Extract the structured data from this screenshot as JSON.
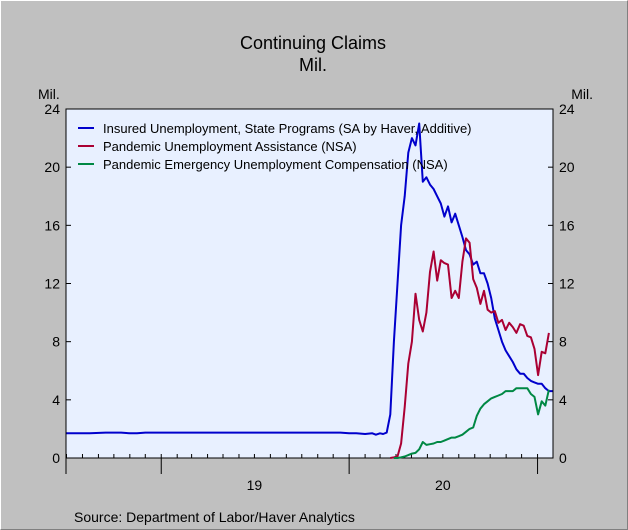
{
  "chart_data": {
    "type": "line",
    "title": "Continuing Claims",
    "subtitle": "Mil.",
    "ylabel_left": "Mil.",
    "ylabel_right": "Mil.",
    "source": "Source: Department of Labor/Haver Analytics",
    "ylim": [
      0,
      24
    ],
    "yticks": [
      "0",
      "4",
      "8",
      "12",
      "16",
      "20",
      "24"
    ],
    "xlim": [
      "2018-06-30",
      "2021-01-31"
    ],
    "x_year_labels": [
      {
        "label": "19",
        "mid": "2019-07-01"
      },
      {
        "label": "20",
        "mid": "2020-07-01"
      }
    ],
    "x_year_boundaries": [
      "2019-01-01",
      "2020-01-01",
      "2021-01-01"
    ],
    "grid": false,
    "legend_position": "top-left",
    "background": "#e8f0ff",
    "series": [
      {
        "name": "Insured Unemployment, State Programs (SA by Haver, Additive)",
        "color": "#0000cc",
        "points": [
          [
            "2018-07-01",
            1.7
          ],
          [
            "2018-08-15",
            1.7
          ],
          [
            "2018-09-15",
            1.75
          ],
          [
            "2018-10-15",
            1.75
          ],
          [
            "2018-11-01",
            1.7
          ],
          [
            "2018-11-15",
            1.7
          ],
          [
            "2018-12-01",
            1.75
          ],
          [
            "2019-02-01",
            1.75
          ],
          [
            "2019-05-01",
            1.75
          ],
          [
            "2019-08-01",
            1.75
          ],
          [
            "2019-11-01",
            1.75
          ],
          [
            "2019-12-15",
            1.75
          ],
          [
            "2020-01-01",
            1.7
          ],
          [
            "2020-01-15",
            1.7
          ],
          [
            "2020-02-01",
            1.65
          ],
          [
            "2020-02-15",
            1.7
          ],
          [
            "2020-02-22",
            1.6
          ],
          [
            "2020-03-01",
            1.7
          ],
          [
            "2020-03-07",
            1.65
          ],
          [
            "2020-03-14",
            1.75
          ],
          [
            "2020-03-21",
            3.0
          ],
          [
            "2020-03-28",
            8.0
          ],
          [
            "2020-04-04",
            12.0
          ],
          [
            "2020-04-11",
            16.0
          ],
          [
            "2020-04-18",
            18.0
          ],
          [
            "2020-04-25",
            21.0
          ],
          [
            "2020-05-02",
            22.0
          ],
          [
            "2020-05-09",
            21.5
          ],
          [
            "2020-05-16",
            23.0
          ],
          [
            "2020-05-23",
            19.0
          ],
          [
            "2020-05-30",
            19.3
          ],
          [
            "2020-06-06",
            18.8
          ],
          [
            "2020-06-13",
            18.5
          ],
          [
            "2020-06-20",
            18.0
          ],
          [
            "2020-06-27",
            17.5
          ],
          [
            "2020-07-04",
            16.6
          ],
          [
            "2020-07-11",
            17.3
          ],
          [
            "2020-07-18",
            16.2
          ],
          [
            "2020-07-25",
            16.8
          ],
          [
            "2020-08-01",
            16.0
          ],
          [
            "2020-08-08",
            15.2
          ],
          [
            "2020-08-15",
            14.3
          ],
          [
            "2020-08-22",
            14.0
          ],
          [
            "2020-08-29",
            13.3
          ],
          [
            "2020-09-05",
            13.5
          ],
          [
            "2020-09-12",
            12.7
          ],
          [
            "2020-09-19",
            12.7
          ],
          [
            "2020-09-26",
            12.0
          ],
          [
            "2020-10-03",
            11.0
          ],
          [
            "2020-10-10",
            9.6
          ],
          [
            "2020-10-17",
            8.8
          ],
          [
            "2020-10-24",
            8.0
          ],
          [
            "2020-10-31",
            7.4
          ],
          [
            "2020-11-07",
            7.0
          ],
          [
            "2020-11-14",
            6.6
          ],
          [
            "2020-11-21",
            6.1
          ],
          [
            "2020-11-28",
            5.8
          ],
          [
            "2020-12-05",
            5.8
          ],
          [
            "2020-12-12",
            5.5
          ],
          [
            "2020-12-19",
            5.3
          ],
          [
            "2020-12-26",
            5.2
          ],
          [
            "2021-01-02",
            5.1
          ],
          [
            "2021-01-09",
            5.1
          ],
          [
            "2021-01-16",
            4.8
          ],
          [
            "2021-01-23",
            4.6
          ],
          [
            "2021-01-30",
            4.6
          ]
        ]
      },
      {
        "name": "Pandemic Unemployment Assistance (NSA)",
        "color": "#aa0033",
        "points": [
          [
            "2020-03-21",
            0.0
          ],
          [
            "2020-03-28",
            0.05
          ],
          [
            "2020-04-04",
            0.1
          ],
          [
            "2020-04-11",
            1.0
          ],
          [
            "2020-04-18",
            3.5
          ],
          [
            "2020-04-25",
            6.5
          ],
          [
            "2020-05-02",
            8.0
          ],
          [
            "2020-05-09",
            11.3
          ],
          [
            "2020-05-16",
            9.5
          ],
          [
            "2020-05-23",
            8.7
          ],
          [
            "2020-05-30",
            10.0
          ],
          [
            "2020-06-06",
            12.8
          ],
          [
            "2020-06-13",
            14.2
          ],
          [
            "2020-06-20",
            12.2
          ],
          [
            "2020-06-27",
            13.6
          ],
          [
            "2020-07-04",
            13.4
          ],
          [
            "2020-07-11",
            13.3
          ],
          [
            "2020-07-18",
            11.0
          ],
          [
            "2020-07-25",
            11.5
          ],
          [
            "2020-08-01",
            11.0
          ],
          [
            "2020-08-08",
            13.5
          ],
          [
            "2020-08-15",
            15.1
          ],
          [
            "2020-08-22",
            14.8
          ],
          [
            "2020-08-29",
            12.3
          ],
          [
            "2020-09-05",
            11.7
          ],
          [
            "2020-09-12",
            10.6
          ],
          [
            "2020-09-19",
            11.5
          ],
          [
            "2020-09-26",
            10.2
          ],
          [
            "2020-10-03",
            10.0
          ],
          [
            "2020-10-10",
            10.1
          ],
          [
            "2020-10-17",
            9.3
          ],
          [
            "2020-10-24",
            9.5
          ],
          [
            "2020-10-31",
            8.8
          ],
          [
            "2020-11-07",
            9.3
          ],
          [
            "2020-11-14",
            9.0
          ],
          [
            "2020-11-21",
            8.6
          ],
          [
            "2020-11-28",
            9.2
          ],
          [
            "2020-12-05",
            9.1
          ],
          [
            "2020-12-12",
            8.4
          ],
          [
            "2020-12-19",
            8.3
          ],
          [
            "2020-12-26",
            7.5
          ],
          [
            "2021-01-02",
            5.7
          ],
          [
            "2021-01-09",
            7.3
          ],
          [
            "2021-01-16",
            7.2
          ],
          [
            "2021-01-23",
            8.6
          ]
        ]
      },
      {
        "name": "Pandemic Emergency Unemployment Compensation (NSA)",
        "color": "#008844",
        "points": [
          [
            "2020-03-28",
            0.0
          ],
          [
            "2020-04-04",
            0.0
          ],
          [
            "2020-04-11",
            0.05
          ],
          [
            "2020-04-18",
            0.1
          ],
          [
            "2020-04-25",
            0.2
          ],
          [
            "2020-05-02",
            0.3
          ],
          [
            "2020-05-09",
            0.35
          ],
          [
            "2020-05-16",
            0.6
          ],
          [
            "2020-05-23",
            1.1
          ],
          [
            "2020-05-30",
            0.9
          ],
          [
            "2020-06-06",
            0.95
          ],
          [
            "2020-06-13",
            1.0
          ],
          [
            "2020-06-20",
            1.1
          ],
          [
            "2020-06-27",
            1.1
          ],
          [
            "2020-07-04",
            1.2
          ],
          [
            "2020-07-11",
            1.3
          ],
          [
            "2020-07-18",
            1.4
          ],
          [
            "2020-07-25",
            1.4
          ],
          [
            "2020-08-01",
            1.5
          ],
          [
            "2020-08-08",
            1.6
          ],
          [
            "2020-08-15",
            1.8
          ],
          [
            "2020-08-22",
            2.0
          ],
          [
            "2020-08-29",
            2.1
          ],
          [
            "2020-09-05",
            2.9
          ],
          [
            "2020-09-12",
            3.4
          ],
          [
            "2020-09-19",
            3.7
          ],
          [
            "2020-09-26",
            3.9
          ],
          [
            "2020-10-03",
            4.1
          ],
          [
            "2020-10-10",
            4.2
          ],
          [
            "2020-10-17",
            4.3
          ],
          [
            "2020-10-24",
            4.4
          ],
          [
            "2020-10-31",
            4.6
          ],
          [
            "2020-11-07",
            4.6
          ],
          [
            "2020-11-14",
            4.6
          ],
          [
            "2020-11-21",
            4.8
          ],
          [
            "2020-11-28",
            4.8
          ],
          [
            "2020-12-05",
            4.8
          ],
          [
            "2020-12-12",
            4.8
          ],
          [
            "2020-12-19",
            4.4
          ],
          [
            "2020-12-26",
            4.2
          ],
          [
            "2021-01-02",
            3.0
          ],
          [
            "2021-01-09",
            3.9
          ],
          [
            "2021-01-16",
            3.6
          ],
          [
            "2021-01-23",
            4.7
          ]
        ]
      }
    ]
  }
}
